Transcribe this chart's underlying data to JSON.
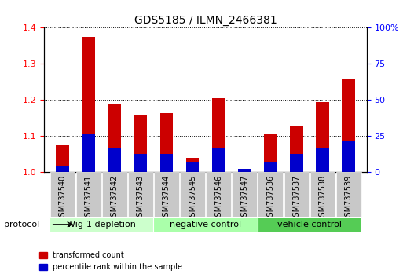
{
  "title": "GDS5185 / ILMN_2466381",
  "categories": [
    "GSM737540",
    "GSM737541",
    "GSM737542",
    "GSM737543",
    "GSM737544",
    "GSM737545",
    "GSM737546",
    "GSM737547",
    "GSM737536",
    "GSM737537",
    "GSM737538",
    "GSM737539"
  ],
  "red_values": [
    1.075,
    1.375,
    1.19,
    1.16,
    1.165,
    1.04,
    1.205,
    1.01,
    1.105,
    1.13,
    1.195,
    1.26
  ],
  "blue_values": [
    0.04,
    0.265,
    0.17,
    0.13,
    0.13,
    0.075,
    0.17,
    0.025,
    0.075,
    0.13,
    0.17,
    0.22
  ],
  "groups": [
    {
      "label": "Wig-1 depletion",
      "start": 0,
      "end": 4,
      "color": "#ccffcc"
    },
    {
      "label": "negative control",
      "start": 4,
      "end": 8,
      "color": "#aaffaa"
    },
    {
      "label": "vehicle control",
      "start": 8,
      "end": 12,
      "color": "#55cc55"
    }
  ],
  "ylim_left": [
    1.0,
    1.4
  ],
  "ylim_right": [
    0,
    100
  ],
  "yticks_left": [
    1.0,
    1.1,
    1.2,
    1.3,
    1.4
  ],
  "yticks_right": [
    0,
    25,
    50,
    75,
    100
  ],
  "ytick_labels_right": [
    "0",
    "25",
    "50",
    "75",
    "100%"
  ],
  "bar_width": 0.5,
  "red_color": "#cc0000",
  "blue_color": "#0000cc",
  "bg_color": "#ffffff",
  "plot_bg": "#ffffff",
  "xlabel_area_color": "#c8c8c8",
  "protocol_label": "protocol",
  "legend_red": "transformed count",
  "legend_blue": "percentile rank within the sample"
}
